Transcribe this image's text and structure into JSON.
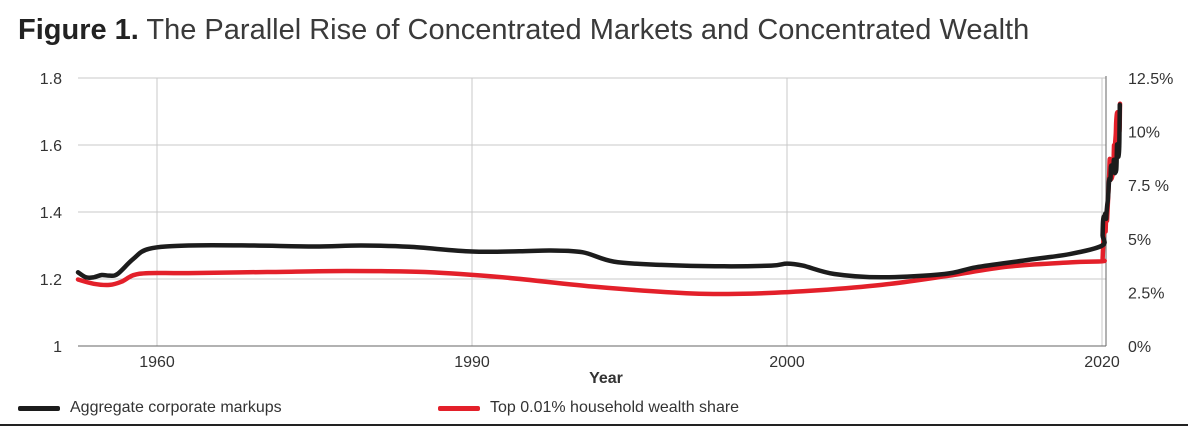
{
  "title": {
    "prefix": "Figure 1.",
    "text": "The Parallel Rise of Concentrated Markets and Concentrated Wealth"
  },
  "colors": {
    "markups": "#1c1c1c",
    "wealth": "#e3202a",
    "grid": "#c8c8c8",
    "axis": "#666666"
  },
  "chart_data": {
    "type": "line",
    "title": "The Parallel Rise of Concentrated Markets and Concentrated Wealth",
    "xlabel": "Year",
    "ylabel_left": "",
    "ylabel_right": "",
    "x_ticks": [
      "1960",
      "1990",
      "2000",
      "2020"
    ],
    "x_tick_labels": [
      {
        "id": "1960",
        "label": "1960"
      },
      {
        "id": "1990",
        "label": "1990"
      },
      {
        "id": "2000",
        "label": "2000"
      },
      {
        "id": "2020",
        "label": "2020"
      }
    ],
    "y_left": {
      "ylim": [
        1.0,
        1.8
      ],
      "ticks": [
        "1",
        "1.2",
        "1.4",
        "1.6",
        "1.8"
      ]
    },
    "y_right": {
      "ylim": [
        0,
        12.5
      ],
      "ticks": [
        "0%",
        "2.5%",
        "5%",
        "7.5 %",
        "10%",
        "12.5%"
      ]
    },
    "legend_position": "bottom",
    "series": [
      {
        "name": "Aggregate corporate markups",
        "axis": "left",
        "points": [
          [
            0,
            1.22
          ],
          [
            0.1,
            1.205
          ],
          [
            0.2,
            1.205
          ],
          [
            0.3,
            1.212
          ],
          [
            0.4,
            1.21
          ],
          [
            0.5,
            1.215
          ],
          [
            0.7,
            1.26
          ],
          [
            0.9,
            1.29
          ],
          [
            1.1,
            1.3
          ],
          [
            1.3,
            1.3
          ],
          [
            1.5,
            1.297
          ],
          [
            1.65,
            1.3
          ],
          [
            1.8,
            1.296
          ],
          [
            2.0,
            1.282
          ],
          [
            2.15,
            1.283
          ],
          [
            2.25,
            1.285
          ],
          [
            2.35,
            1.28
          ],
          [
            2.45,
            1.252
          ],
          [
            2.6,
            1.242
          ],
          [
            2.8,
            1.238
          ],
          [
            2.95,
            1.24
          ],
          [
            3.0,
            1.246
          ],
          [
            3.05,
            1.24
          ],
          [
            3.15,
            1.215
          ],
          [
            3.3,
            1.205
          ],
          [
            3.5,
            1.215
          ],
          [
            3.6,
            1.235
          ],
          [
            3.75,
            1.255
          ],
          [
            3.9,
            1.275
          ],
          [
            4.05,
            1.3
          ],
          [
            4.15,
            1.33
          ],
          [
            4.25,
            1.37
          ],
          [
            4.4,
            1.385
          ],
          [
            4.6,
            1.385
          ],
          [
            4.8,
            1.395
          ],
          [
            4.95,
            1.39
          ],
          [
            5.05,
            1.38
          ],
          [
            5.15,
            1.4
          ],
          [
            5.3,
            1.42
          ],
          [
            5.45,
            1.435
          ],
          [
            5.6,
            1.46
          ],
          [
            5.75,
            1.49
          ],
          [
            5.9,
            1.5
          ],
          [
            6.05,
            1.495
          ],
          [
            6.15,
            1.505
          ],
          [
            6.25,
            1.535
          ],
          [
            6.4,
            1.538
          ],
          [
            6.55,
            1.53
          ],
          [
            6.65,
            1.525
          ],
          [
            6.8,
            1.52
          ],
          [
            6.9,
            1.545
          ],
          [
            7.0,
            1.555
          ],
          [
            7.15,
            1.52
          ],
          [
            7.35,
            1.518
          ],
          [
            7.55,
            1.525
          ],
          [
            7.65,
            1.55
          ],
          [
            7.75,
            1.6
          ],
          [
            7.85,
            1.59
          ],
          [
            7.95,
            1.575
          ],
          [
            8.1,
            1.565
          ],
          [
            8.25,
            1.58
          ],
          [
            8.35,
            1.62
          ],
          [
            8.45,
            1.72
          ]
        ]
      },
      {
        "name": "Top 0.01% household wealth share",
        "axis": "right",
        "points": [
          [
            0,
            3.1
          ],
          [
            0.2,
            2.9
          ],
          [
            0.4,
            2.85
          ],
          [
            0.55,
            3.0
          ],
          [
            0.7,
            3.3
          ],
          [
            0.9,
            3.4
          ],
          [
            1.1,
            3.4
          ],
          [
            1.35,
            3.45
          ],
          [
            1.6,
            3.5
          ],
          [
            1.85,
            3.45
          ],
          [
            2.1,
            3.2
          ],
          [
            2.4,
            2.75
          ],
          [
            2.7,
            2.45
          ],
          [
            2.9,
            2.45
          ],
          [
            3.1,
            2.6
          ],
          [
            3.3,
            2.85
          ],
          [
            3.5,
            3.25
          ],
          [
            3.7,
            3.7
          ],
          [
            3.9,
            3.9
          ],
          [
            4.05,
            3.95
          ],
          [
            4.15,
            4.05
          ],
          [
            4.25,
            4.5
          ],
          [
            4.4,
            5.2
          ],
          [
            4.6,
            5.5
          ],
          [
            4.8,
            5.5
          ],
          [
            4.9,
            5.35
          ],
          [
            5.0,
            5.8
          ],
          [
            5.15,
            5.9
          ],
          [
            5.25,
            5.85
          ],
          [
            5.35,
            6.2
          ],
          [
            5.5,
            6.8
          ],
          [
            5.65,
            7.4
          ],
          [
            5.8,
            8.0
          ],
          [
            5.92,
            8.7
          ],
          [
            6.0,
            8.55
          ],
          [
            6.1,
            8.1
          ],
          [
            6.2,
            7.8
          ],
          [
            6.35,
            7.8
          ],
          [
            6.55,
            7.9
          ],
          [
            6.75,
            8.2
          ],
          [
            6.9,
            8.6
          ],
          [
            6.97,
            9.2
          ],
          [
            7.02,
            9.35
          ],
          [
            7.12,
            8.85
          ],
          [
            7.2,
            9.0
          ],
          [
            7.3,
            9.5
          ],
          [
            7.45,
            9.9
          ],
          [
            7.55,
            10.45
          ],
          [
            7.7,
            10.8
          ],
          [
            7.85,
            10.9
          ],
          [
            8.0,
            10.8
          ],
          [
            8.1,
            10.6
          ],
          [
            8.2,
            10.3
          ],
          [
            8.27,
            10.05
          ],
          [
            8.35,
            10.0
          ],
          [
            8.42,
            10.3
          ],
          [
            8.5,
            11.3
          ]
        ]
      }
    ]
  },
  "legend": {
    "markups_label": "Aggregate corporate markups",
    "wealth_label": "Top 0.01% household wealth share"
  }
}
